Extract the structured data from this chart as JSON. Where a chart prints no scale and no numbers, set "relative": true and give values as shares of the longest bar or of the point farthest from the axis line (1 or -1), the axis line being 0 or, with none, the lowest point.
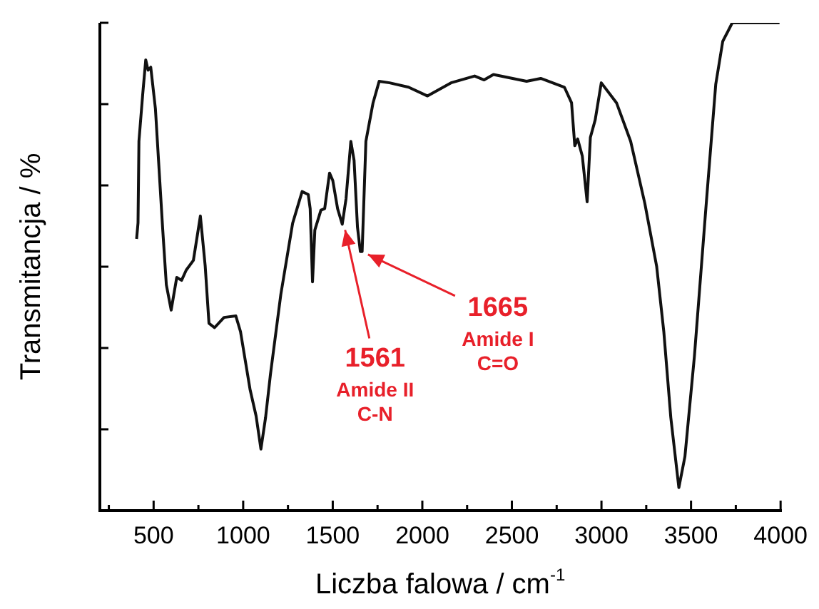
{
  "chart_data": {
    "type": "line",
    "xlabel": "Liczba falowa / cm$^{-1}$",
    "ylabel": "Transmitancja / %",
    "relative": true,
    "grid": false,
    "legend": false,
    "marker": "none",
    "line_style": "solid",
    "x": [
      405,
      413,
      418,
      439,
      456,
      469,
      484,
      510,
      550,
      571,
      598,
      629,
      656,
      682,
      722,
      761,
      788,
      809,
      840,
      893,
      959,
      985,
      1038,
      1072,
      1099,
      1125,
      1152,
      1210,
      1276,
      1329,
      1363,
      1374,
      1387,
      1400,
      1434,
      1455,
      1482,
      1500,
      1527,
      1553,
      1574,
      1601,
      1619,
      1638,
      1654,
      1664,
      1685,
      1725,
      1759,
      1817,
      1923,
      2029,
      2160,
      2292,
      2345,
      2397,
      2582,
      2661,
      2793,
      2833,
      2851,
      2867,
      2893,
      2920,
      2938,
      2965,
      2999,
      3084,
      3163,
      3242,
      3308,
      3348,
      3387,
      3432,
      3466,
      3519,
      3585,
      3638,
      3677,
      3730,
      3994
    ],
    "series": [
      {
        "color": "#111111",
        "values": [
          0.557,
          0.59,
          0.757,
          0.853,
          0.924,
          0.903,
          0.909,
          0.824,
          0.581,
          0.463,
          0.411,
          0.478,
          0.472,
          0.493,
          0.513,
          0.604,
          0.501,
          0.384,
          0.375,
          0.396,
          0.399,
          0.367,
          0.249,
          0.194,
          0.126,
          0.191,
          0.279,
          0.443,
          0.589,
          0.654,
          0.648,
          0.619,
          0.469,
          0.575,
          0.616,
          0.619,
          0.692,
          0.677,
          0.619,
          0.587,
          0.639,
          0.757,
          0.718,
          0.581,
          0.531,
          0.531,
          0.757,
          0.836,
          0.88,
          0.877,
          0.868,
          0.85,
          0.877,
          0.891,
          0.883,
          0.894,
          0.88,
          0.886,
          0.868,
          0.836,
          0.748,
          0.762,
          0.727,
          0.633,
          0.765,
          0.801,
          0.877,
          0.836,
          0.757,
          0.63,
          0.501,
          0.367,
          0.191,
          0.047,
          0.111,
          0.317,
          0.63,
          0.874,
          0.962,
          1.0,
          1.0
        ]
      }
    ],
    "xlim": [
      200,
      4000
    ],
    "xticks": [
      {
        "value": 250,
        "label": null
      },
      500,
      {
        "value": 750,
        "label": null
      },
      1000,
      {
        "value": 1250,
        "label": null
      },
      1500,
      {
        "value": 1750,
        "label": null
      },
      2000,
      {
        "value": 2250,
        "label": null
      },
      2500,
      {
        "value": 2750,
        "label": null
      },
      3000,
      {
        "value": 3250,
        "label": null
      },
      3500,
      {
        "value": 3750,
        "label": null
      },
      4000
    ],
    "annotations": [
      {
        "text": "1561\nAmide II\nC-N",
        "x": 1561,
        "y": 0.587
      },
      {
        "text": "1665\nAmide I\nC=O",
        "x": 1665,
        "y": 0.531
      }
    ]
  }
}
